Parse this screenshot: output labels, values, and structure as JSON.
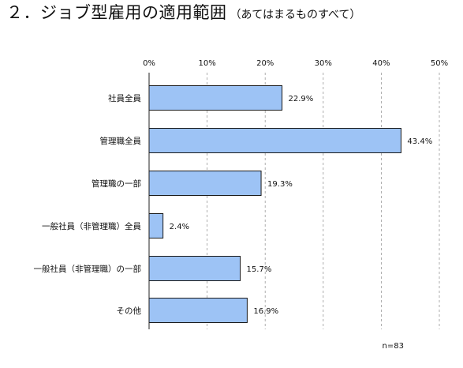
{
  "title": {
    "main": "２．ジョブ型雇用の適用範囲",
    "sub": "（あてはまるものすべて）"
  },
  "chart_data": {
    "type": "bar",
    "orientation": "horizontal",
    "categories": [
      "社員全員",
      "管理職全員",
      "管理職の一部",
      "一般社員（非管理職）全員",
      "一般社員（非管理職）の一部",
      "その他"
    ],
    "values": [
      22.9,
      43.4,
      19.3,
      2.4,
      15.7,
      16.9
    ],
    "value_labels": [
      "22.9%",
      "43.4%",
      "19.3%",
      "2.4%",
      "15.7%",
      "16.9%"
    ],
    "x_ticks": [
      0,
      10,
      20,
      30,
      40,
      50
    ],
    "x_tick_labels": [
      "0%",
      "10%",
      "20%",
      "30%",
      "40%",
      "50%"
    ],
    "xlim": [
      0,
      50
    ],
    "axis_position": "top",
    "grid": "vertical dashed",
    "bar_color": "#9DC3F5",
    "bar_edge_color": "#1A1A1A",
    "note": "n=83"
  }
}
